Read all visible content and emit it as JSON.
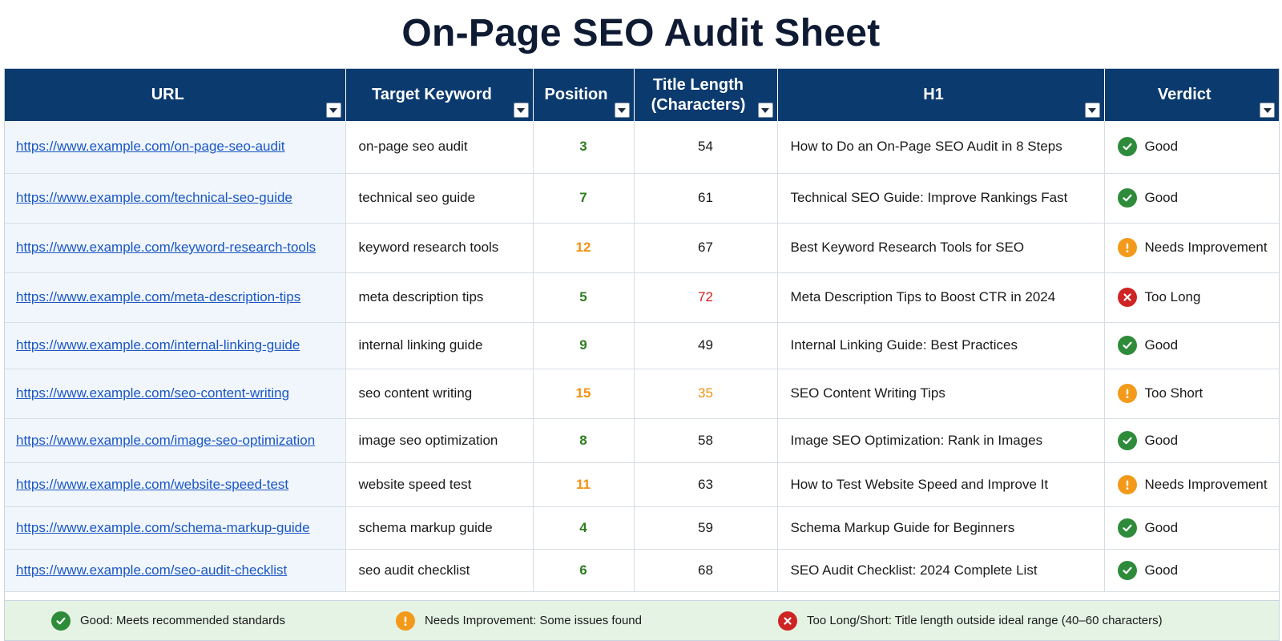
{
  "title": "On-Page SEO Audit Sheet",
  "columns": {
    "url": "URL",
    "keyword": "Target Keyword",
    "position": "Position",
    "title_length_line1": "Title Length",
    "title_length_line2": "(Characters)",
    "h1": "H1",
    "verdict": "Verdict"
  },
  "colors": {
    "header_bg": "#0b3a6e",
    "good": "#2e8b3a",
    "warning": "#f39a1a",
    "bad": "#cf2424",
    "link": "#1a56c4",
    "legend_bg": "#e5f3e4"
  },
  "rows": [
    {
      "url": "https://www.example.com/on-page-seo-audit",
      "keyword": "on-page seo audit",
      "position": "3",
      "position_status": "good",
      "title_length": "54",
      "length_status": "normal",
      "h1": "How to Do an On-Page SEO Audit in 8 Steps",
      "verdict": "Good",
      "verdict_status": "good"
    },
    {
      "url": "https://www.example.com/technical-seo-guide",
      "keyword": "technical seo guide",
      "position": "7",
      "position_status": "good",
      "title_length": "61",
      "length_status": "normal",
      "h1": "Technical SEO Guide: Improve Rankings Fast",
      "verdict": "Good",
      "verdict_status": "good"
    },
    {
      "url": "https://www.example.com/keyword-research-tools",
      "keyword": "keyword research tools",
      "position": "12",
      "position_status": "warn",
      "title_length": "67",
      "length_status": "normal",
      "h1": "Best Keyword Research Tools for SEO",
      "verdict": "Needs Improvement",
      "verdict_status": "warn"
    },
    {
      "url": "https://www.example.com/meta-description-tips",
      "keyword": "meta description tips",
      "position": "5",
      "position_status": "good",
      "title_length": "72",
      "length_status": "bad",
      "h1": "Meta Description Tips to Boost CTR in 2024",
      "verdict": "Too Long",
      "verdict_status": "bad"
    },
    {
      "url": "https://www.example.com/internal-linking-guide",
      "keyword": "internal linking guide",
      "position": "9",
      "position_status": "good",
      "title_length": "49",
      "length_status": "normal",
      "h1": "Internal Linking Guide: Best Practices",
      "verdict": "Good",
      "verdict_status": "good"
    },
    {
      "url": "https://www.example.com/seo-content-writing",
      "keyword": "seo content writing",
      "position": "15",
      "position_status": "warn",
      "title_length": "35",
      "length_status": "warn",
      "h1": "SEO Content Writing Tips",
      "verdict": "Too Short",
      "verdict_status": "warn"
    },
    {
      "url": "https://www.example.com/image-seo-optimization",
      "keyword": "image seo optimization",
      "position": "8",
      "position_status": "good",
      "title_length": "58",
      "length_status": "normal",
      "h1": "Image SEO Optimization: Rank in Images",
      "verdict": "Good",
      "verdict_status": "good"
    },
    {
      "url": "https://www.example.com/website-speed-test",
      "keyword": "website speed test",
      "position": "11",
      "position_status": "warn",
      "title_length": "63",
      "length_status": "normal",
      "h1": "How to Test Website Speed and Improve It",
      "verdict": "Needs Improvement",
      "verdict_status": "warn"
    },
    {
      "url": "https://www.example.com/schema-markup-guide",
      "keyword": "schema markup guide",
      "position": "4",
      "position_status": "good",
      "title_length": "59",
      "length_status": "normal",
      "h1": "Schema Markup Guide for Beginners",
      "verdict": "Good",
      "verdict_status": "good"
    },
    {
      "url": "https://www.example.com/seo-audit-checklist",
      "keyword": "seo audit checklist",
      "position": "6",
      "position_status": "good",
      "title_length": "68",
      "length_status": "normal",
      "h1": "SEO Audit Checklist: 2024 Complete List",
      "verdict": "Good",
      "verdict_status": "good"
    }
  ],
  "legend": [
    {
      "icon": "check-icon",
      "status": "good",
      "text": "Good: Meets recommended standards"
    },
    {
      "icon": "exclamation-icon",
      "status": "warn",
      "text": "Needs Improvement: Some issues found"
    },
    {
      "icon": "x-icon",
      "status": "bad",
      "text": "Too Long/Short: Title length outside ideal range (40–60 characters)"
    }
  ]
}
